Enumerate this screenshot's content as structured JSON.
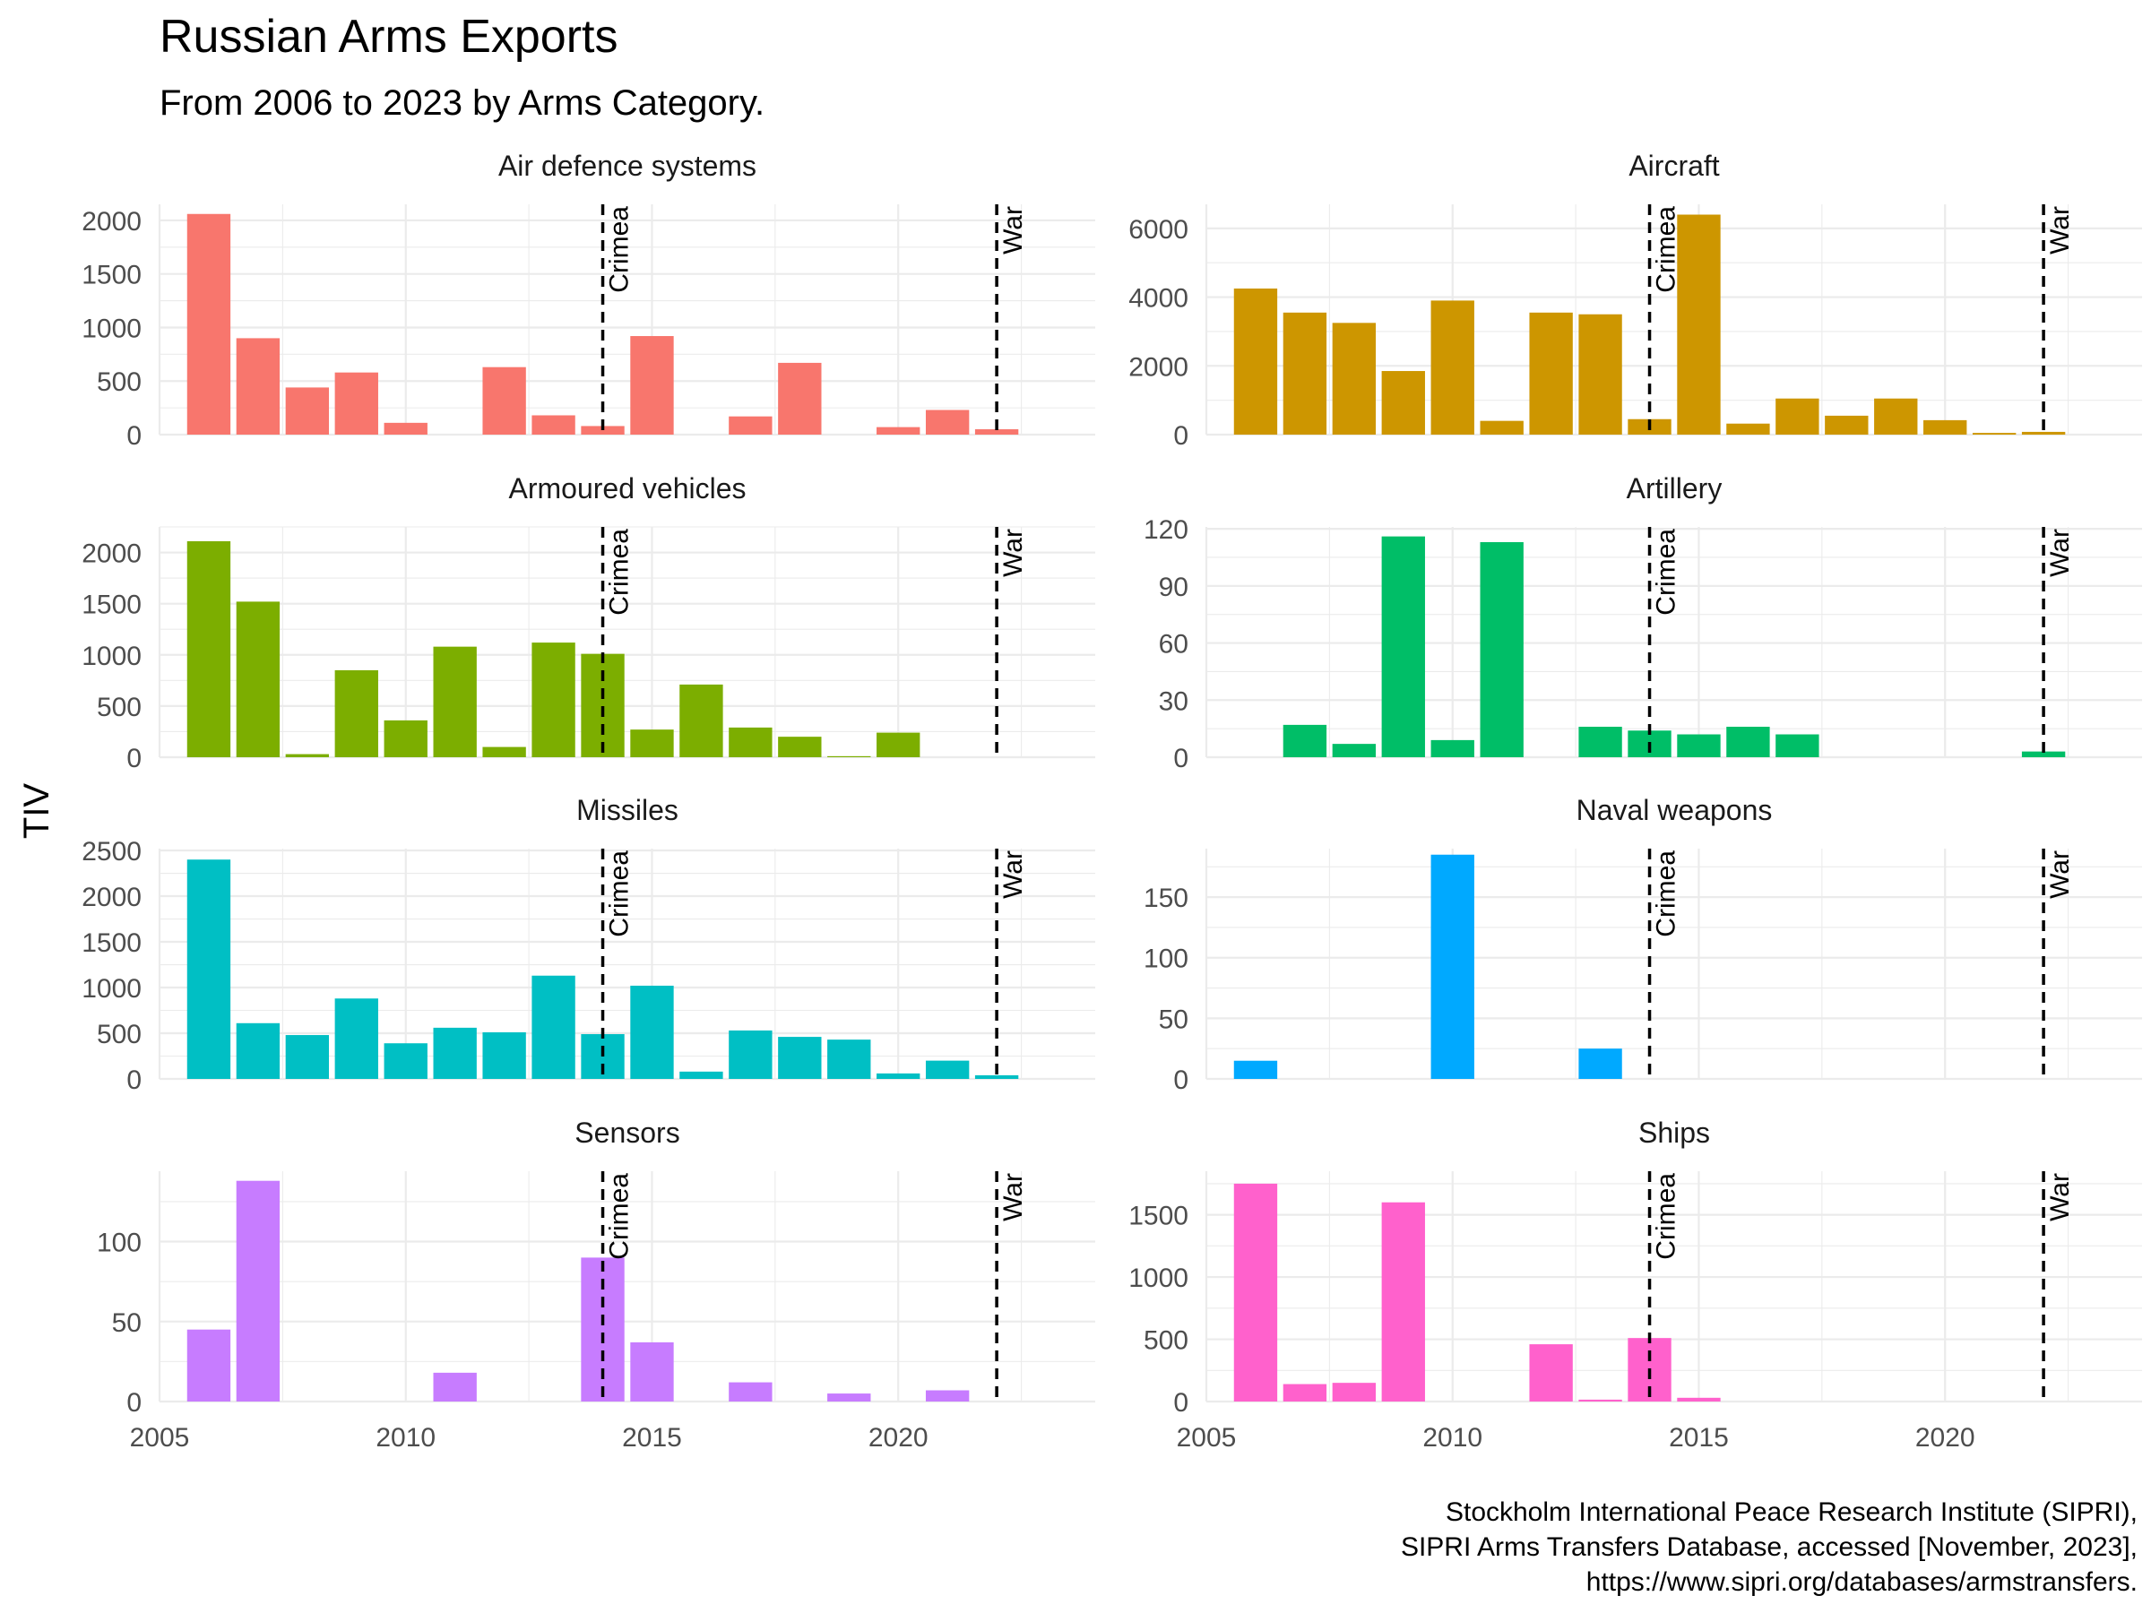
{
  "chart_data": {
    "type": "bar",
    "title": "Russian Arms Exports",
    "subtitle": "From 2006 to 2023 by Arms Category.",
    "ylabel": "TIV",
    "x_range": [
      2005,
      2024
    ],
    "x_ticks": [
      2005,
      2010,
      2015,
      2020
    ],
    "vertical_lines": [
      {
        "x": 2014,
        "label": "Crimea"
      },
      {
        "x": 2022,
        "label": "War"
      }
    ],
    "caption": [
      "Stockholm International Peace Research Institute (SIPRI),",
      "SIPRI Arms Transfers Database, accessed [November, 2023],",
      "https://www.sipri.org/databases/armstransfers."
    ],
    "grid": true,
    "legend": "none",
    "panels": [
      {
        "name": "Air defence systems",
        "color": "#F8766D",
        "ylim": [
          0,
          2150
        ],
        "y_ticks": [
          0,
          500,
          1000,
          1500,
          2000
        ],
        "data": [
          [
            2006,
            2060
          ],
          [
            2007,
            900
          ],
          [
            2008,
            440
          ],
          [
            2009,
            580
          ],
          [
            2010,
            110
          ],
          [
            2012,
            630
          ],
          [
            2013,
            180
          ],
          [
            2014,
            80
          ],
          [
            2015,
            920
          ],
          [
            2017,
            170
          ],
          [
            2018,
            670
          ],
          [
            2020,
            70
          ],
          [
            2021,
            230
          ],
          [
            2022,
            50
          ]
        ]
      },
      {
        "name": "Aircraft",
        "color": "#CD9600",
        "ylim": [
          0,
          6700
        ],
        "y_ticks": [
          0,
          2000,
          4000,
          6000
        ],
        "data": [
          [
            2006,
            4250
          ],
          [
            2007,
            3550
          ],
          [
            2008,
            3250
          ],
          [
            2009,
            1850
          ],
          [
            2010,
            3900
          ],
          [
            2011,
            400
          ],
          [
            2012,
            3550
          ],
          [
            2013,
            3500
          ],
          [
            2014,
            450
          ],
          [
            2015,
            6400
          ],
          [
            2016,
            320
          ],
          [
            2017,
            1050
          ],
          [
            2018,
            550
          ],
          [
            2019,
            1050
          ],
          [
            2020,
            420
          ],
          [
            2021,
            50
          ],
          [
            2022,
            80
          ]
        ]
      },
      {
        "name": "Armoured vehicles",
        "color": "#7CAE00",
        "ylim": [
          0,
          2250
        ],
        "y_ticks": [
          0,
          500,
          1000,
          1500,
          2000
        ],
        "data": [
          [
            2006,
            2110
          ],
          [
            2007,
            1520
          ],
          [
            2008,
            30
          ],
          [
            2009,
            850
          ],
          [
            2010,
            360
          ],
          [
            2011,
            1080
          ],
          [
            2012,
            100
          ],
          [
            2013,
            1120
          ],
          [
            2014,
            1010
          ],
          [
            2015,
            270
          ],
          [
            2016,
            710
          ],
          [
            2017,
            290
          ],
          [
            2018,
            200
          ],
          [
            2019,
            10
          ],
          [
            2020,
            240
          ]
        ]
      },
      {
        "name": "Artillery",
        "color": "#00BE67",
        "ylim": [
          0,
          121
        ],
        "y_ticks": [
          0,
          30,
          60,
          90,
          120
        ],
        "data": [
          [
            2007,
            17
          ],
          [
            2008,
            7
          ],
          [
            2009,
            116
          ],
          [
            2010,
            9
          ],
          [
            2011,
            113
          ],
          [
            2013,
            16
          ],
          [
            2014,
            14
          ],
          [
            2015,
            12
          ],
          [
            2016,
            16
          ],
          [
            2017,
            12
          ],
          [
            2022,
            3
          ]
        ]
      },
      {
        "name": "Missiles",
        "color": "#00BFC4",
        "ylim": [
          0,
          2520
        ],
        "y_ticks": [
          0,
          500,
          1000,
          1500,
          2000,
          2500
        ],
        "data": [
          [
            2006,
            2400
          ],
          [
            2007,
            610
          ],
          [
            2008,
            480
          ],
          [
            2009,
            880
          ],
          [
            2010,
            390
          ],
          [
            2011,
            560
          ],
          [
            2012,
            510
          ],
          [
            2013,
            1130
          ],
          [
            2014,
            490
          ],
          [
            2015,
            1020
          ],
          [
            2016,
            80
          ],
          [
            2017,
            530
          ],
          [
            2018,
            460
          ],
          [
            2019,
            430
          ],
          [
            2020,
            60
          ],
          [
            2021,
            200
          ],
          [
            2022,
            40
          ]
        ]
      },
      {
        "name": "Naval weapons",
        "color": "#00A9FF",
        "ylim": [
          0,
          190
        ],
        "y_ticks": [
          0,
          50,
          100,
          150
        ],
        "data": [
          [
            2006,
            15
          ],
          [
            2010,
            185
          ],
          [
            2013,
            25
          ]
        ]
      },
      {
        "name": "Sensors",
        "color": "#C77CFF",
        "ylim": [
          0,
          144
        ],
        "y_ticks": [
          0,
          50,
          100
        ],
        "data": [
          [
            2006,
            45
          ],
          [
            2007,
            138
          ],
          [
            2011,
            18
          ],
          [
            2014,
            90
          ],
          [
            2015,
            37
          ],
          [
            2017,
            12
          ],
          [
            2019,
            5
          ],
          [
            2021,
            7
          ]
        ]
      },
      {
        "name": "Ships",
        "color": "#FF61CC",
        "ylim": [
          0,
          1850
        ],
        "y_ticks": [
          0,
          500,
          1000,
          1500
        ],
        "data": [
          [
            2006,
            1750
          ],
          [
            2007,
            140
          ],
          [
            2008,
            150
          ],
          [
            2009,
            1600
          ],
          [
            2012,
            460
          ],
          [
            2013,
            15
          ],
          [
            2014,
            510
          ],
          [
            2015,
            30
          ]
        ]
      }
    ]
  }
}
